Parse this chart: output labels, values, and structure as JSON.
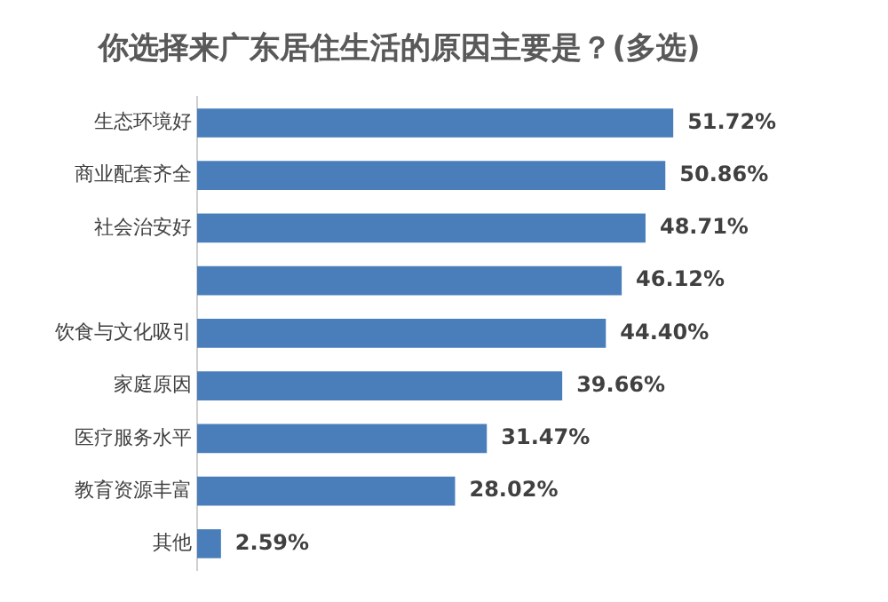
{
  "chart_data": {
    "type": "bar",
    "orientation": "horizontal",
    "title": "你选择来广东居住生活的原因主要是？(多选)",
    "categories": [
      "生态环境好",
      "商业配套齐全",
      "社会治安好",
      null,
      "饮食与文化吸引",
      "家庭原因",
      "医疗服务水平",
      "教育资源丰富",
      "其他"
    ],
    "values": [
      51.72,
      50.86,
      48.71,
      46.12,
      44.4,
      39.66,
      31.47,
      28.02,
      2.59
    ],
    "value_labels": [
      "51.72%",
      "50.86%",
      "48.71%",
      "46.12%",
      "44.40%",
      "39.66%",
      "31.47%",
      "28.02%",
      "2.59%"
    ],
    "color": "#4a7ebb",
    "grid": false,
    "legend": false,
    "tick_labels": "y"
  }
}
